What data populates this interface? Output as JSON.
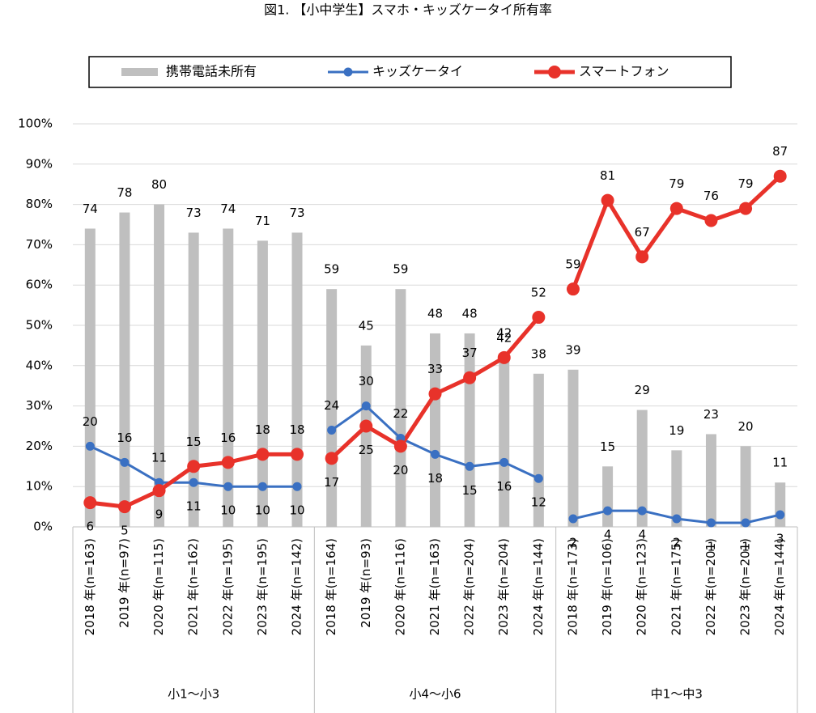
{
  "chart_data": {
    "type": "bar_line",
    "title": "図1. 【小中学生】スマホ・キッズケータイ所有率",
    "categories": [
      "2018 年(n=163)",
      "2019 年(n=97)",
      "2020 年(n=115)",
      "2021 年(n=162)",
      "2022 年(n=195)",
      "2023 年(n=195)",
      "2024 年(n=142)",
      "2018 年(n=164)",
      "2019 年(n=93)",
      "2020 年(n=116)",
      "2021 年(n=163)",
      "2022 年(n=204)",
      "2023 年(n=204)",
      "2024 年(n=144)",
      "2018 年(n=173)",
      "2019 年(n=106)",
      "2020 年(n=123)",
      "2021 年(n=175)",
      "2022 年(n=201)",
      "2023 年(n=201)",
      "2024 年(n=144)"
    ],
    "groups": [
      {
        "label": "小1～小3",
        "size": 7
      },
      {
        "label": "小4～小6",
        "size": 7
      },
      {
        "label": "中1～中3",
        "size": 7
      }
    ],
    "series": [
      {
        "name": "携帯電話未所有",
        "kind": "bar",
        "color": "#bfbfbf",
        "values": [
          74,
          78,
          80,
          73,
          74,
          71,
          73,
          59,
          45,
          59,
          48,
          48,
          42,
          38,
          39,
          15,
          29,
          19,
          23,
          20,
          11
        ]
      },
      {
        "name": "キッズケータイ",
        "kind": "line",
        "color": "#3a70c2",
        "values": [
          20,
          16,
          11,
          11,
          10,
          10,
          10,
          24,
          30,
          22,
          18,
          15,
          16,
          12,
          2,
          4,
          4,
          2,
          1,
          1,
          3
        ]
      },
      {
        "name": "スマートフォン",
        "kind": "line",
        "color": "#e8322a",
        "values": [
          6,
          5,
          9,
          15,
          16,
          18,
          18,
          17,
          25,
          20,
          33,
          37,
          42,
          52,
          59,
          81,
          67,
          79,
          76,
          79,
          87
        ]
      }
    ],
    "ylim": [
      0,
      100
    ],
    "yticks": [
      {
        "value": 0,
        "label": "0%"
      },
      {
        "value": 10,
        "label": "10%"
      },
      {
        "value": 20,
        "label": "20%"
      },
      {
        "value": 30,
        "label": "30%"
      },
      {
        "value": 40,
        "label": "40%"
      },
      {
        "value": 50,
        "label": "50%"
      },
      {
        "value": 60,
        "label": "60%"
      },
      {
        "value": 70,
        "label": "70%"
      },
      {
        "value": 80,
        "label": "80%"
      },
      {
        "value": 90,
        "label": "90%"
      },
      {
        "value": 100,
        "label": "100%"
      }
    ],
    "grid": true,
    "legend": "top"
  }
}
